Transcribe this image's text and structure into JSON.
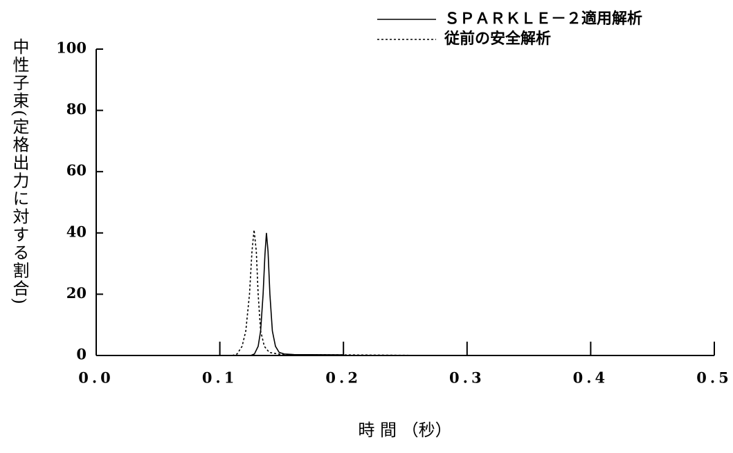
{
  "chart_data": {
    "type": "line",
    "x_label": "時 間 （秒）",
    "y_label": "中性子束(定格出力に対する割合)",
    "xlim": [
      0,
      0.5
    ],
    "xticks": [
      {
        "value": 0,
        "label": "0.0"
      },
      0.1,
      0.2,
      0.3,
      0.4,
      0.5
    ],
    "ylim": [
      0,
      100
    ],
    "yticks": [
      0,
      20,
      40,
      60,
      80,
      100
    ],
    "series": [
      {
        "name": "ＳＰＡＲＫＬＥ－２適用解析",
        "color": "#000000",
        "dash": "solid",
        "x": [
          0.12,
          0.125,
          0.128,
          0.131,
          0.133,
          0.135,
          0.1365,
          0.1377,
          0.139,
          0.1405,
          0.1425,
          0.145,
          0.148,
          0.152,
          0.16,
          0.2
        ],
        "values": [
          0,
          0,
          0.5,
          3,
          8,
          20,
          33,
          40,
          34,
          20,
          8,
          3,
          1,
          0.5,
          0.3,
          0.2
        ]
      },
      {
        "name": "従前の安全解析",
        "color": "#000000",
        "dash": "dotted",
        "x": [
          0.11,
          0.114,
          0.118,
          0.121,
          0.124,
          0.126,
          0.1277,
          0.1295,
          0.131,
          0.133,
          0.136,
          0.14,
          0.15,
          0.2,
          0.274
        ],
        "values": [
          0,
          0.5,
          3,
          8,
          20,
          34,
          41,
          34,
          20,
          8,
          3,
          1,
          0.3,
          0.2,
          0
        ]
      }
    ]
  }
}
